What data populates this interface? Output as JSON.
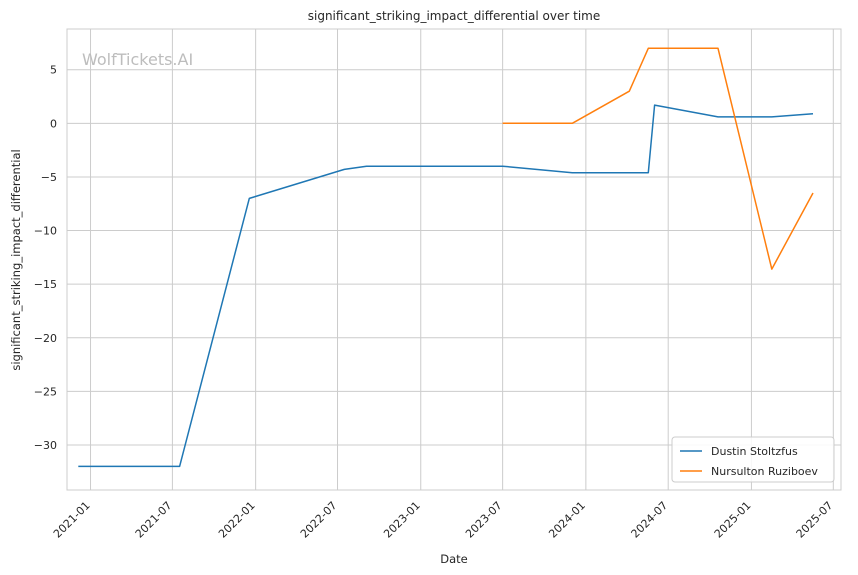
{
  "chart_data": {
    "type": "line",
    "title": "significant_striking_impact_differential over time",
    "xlabel": "Date",
    "ylabel": "significant_striking_impact_differential",
    "watermark": "WolfTickets.AI",
    "x_ticks": [
      "2021-01",
      "2021-07",
      "2022-01",
      "2022-07",
      "2023-01",
      "2023-07",
      "2024-01",
      "2024-07",
      "2025-01",
      "2025-07"
    ],
    "y_ticks": [
      5,
      0,
      -5,
      -10,
      -15,
      -20,
      -25,
      -30
    ],
    "xlim": [
      "2020-11-10",
      "2025-07-18"
    ],
    "ylim": [
      -34.2,
      8.8
    ],
    "grid": true,
    "legend_position": "bottom-right",
    "series": [
      {
        "name": "Dustin Stoltzfus",
        "color": "#1f77b4",
        "points": [
          {
            "x": "2020-12-05",
            "y": -32.0
          },
          {
            "x": "2021-07-17",
            "y": -32.0
          },
          {
            "x": "2021-12-18",
            "y": -7.0
          },
          {
            "x": "2022-07-16",
            "y": -4.3
          },
          {
            "x": "2022-09-03",
            "y": -4.0
          },
          {
            "x": "2023-07-01",
            "y": -4.0
          },
          {
            "x": "2023-12-02",
            "y": -4.6
          },
          {
            "x": "2024-05-18",
            "y": -4.6
          },
          {
            "x": "2024-06-01",
            "y": 1.7
          },
          {
            "x": "2024-10-19",
            "y": 0.6
          },
          {
            "x": "2025-02-15",
            "y": 0.6
          },
          {
            "x": "2025-05-17",
            "y": 0.9
          }
        ]
      },
      {
        "name": "Nursulton Ruziboev",
        "color": "#ff7f0e",
        "points": [
          {
            "x": "2023-07-01",
            "y": 0.0
          },
          {
            "x": "2023-12-02",
            "y": 0.0
          },
          {
            "x": "2024-04-06",
            "y": 3.0
          },
          {
            "x": "2024-05-18",
            "y": 7.0
          },
          {
            "x": "2024-10-19",
            "y": 7.0
          },
          {
            "x": "2025-02-15",
            "y": -13.6
          },
          {
            "x": "2025-05-17",
            "y": -6.5
          }
        ]
      }
    ]
  }
}
